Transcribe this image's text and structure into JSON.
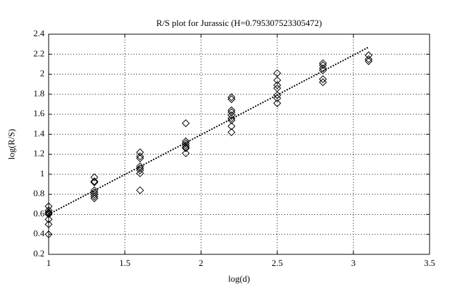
{
  "chart_data": {
    "type": "scatter",
    "title": "R/S plot for Jurassic (H=0.795307523305472)",
    "xlabel": "log(d)",
    "ylabel": "log(R/S)",
    "xlim": [
      1,
      3.5
    ],
    "xticks": [
      1,
      1.5,
      2,
      2.5,
      3,
      3.5
    ],
    "ylim": [
      0.2,
      2.4
    ],
    "yticks": [
      0.2,
      0.4,
      0.6,
      0.8,
      1,
      1.2,
      1.4,
      1.6,
      1.8,
      2,
      2.2,
      2.4
    ],
    "grid": true,
    "series": [
      {
        "marker": "diamond",
        "color": "#000000",
        "x": [
          1,
          1,
          1,
          1,
          1,
          1,
          1,
          1,
          1.3,
          1.3,
          1.3,
          1.3,
          1.3,
          1.3,
          1.3,
          1.3,
          1.6,
          1.6,
          1.6,
          1.6,
          1.6,
          1.6,
          1.6,
          1.6,
          1.9,
          1.9,
          1.9,
          1.9,
          1.9,
          1.9,
          1.9,
          2.2,
          2.2,
          2.2,
          2.2,
          2.2,
          2.2,
          2.2,
          2.2,
          2.2,
          2.5,
          2.5,
          2.5,
          2.5,
          2.5,
          2.5,
          2.5,
          2.8,
          2.8,
          2.8,
          2.8,
          2.8,
          2.8,
          3.1,
          3.1,
          3.1
        ],
        "values": [
          0.68,
          0.64,
          0.62,
          0.61,
          0.6,
          0.55,
          0.5,
          0.4,
          0.97,
          0.93,
          0.92,
          0.84,
          0.82,
          0.8,
          0.78,
          0.76,
          1.22,
          1.18,
          1.16,
          1.08,
          1.06,
          1.04,
          1.01,
          0.84,
          1.51,
          1.33,
          1.31,
          1.29,
          1.27,
          1.26,
          1.21,
          1.77,
          1.75,
          1.64,
          1.62,
          1.59,
          1.56,
          1.54,
          1.48,
          1.42,
          2.01,
          1.94,
          1.89,
          1.86,
          1.79,
          1.76,
          1.71,
          2.11,
          2.09,
          2.06,
          2.04,
          1.95,
          1.92,
          2.19,
          2.15,
          2.13
        ]
      },
      {
        "marker": "dotted-line",
        "color": "#000000",
        "x": [
          1,
          3.1
        ],
        "values": [
          0.6,
          2.27
        ]
      }
    ]
  }
}
